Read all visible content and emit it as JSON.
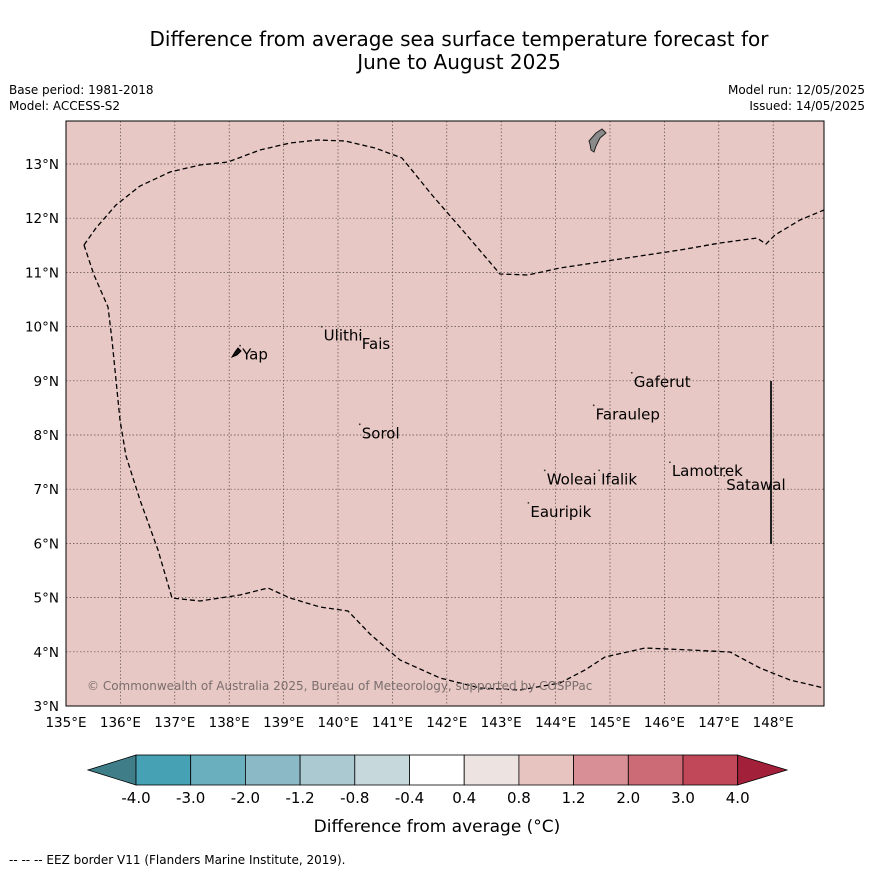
{
  "title_line1": "Difference from average sea surface temperature forecast for",
  "title_line2": "June to August 2025",
  "base_period": "Base period: 1981-2018",
  "model": "Model: ACCESS-S2",
  "model_run": "Model run: 12/05/2025",
  "issued": "Issued: 14/05/2025",
  "copyright": "© Commonwealth of Australia 2025, Bureau of Meteorology, supported by COSPPac",
  "footnote": "--  --  -- EEZ border V11 (Flanders Marine Institute, 2019).",
  "map": {
    "fill_color": "#e8c8c4",
    "lon_ticks": [
      "135°E",
      "136°E",
      "137°E",
      "138°E",
      "139°E",
      "140°E",
      "141°E",
      "142°E",
      "143°E",
      "144°E",
      "145°E",
      "146°E",
      "147°E",
      "148°E"
    ],
    "lat_ticks": [
      "3°N",
      "4°N",
      "5°N",
      "6°N",
      "7°N",
      "8°N",
      "9°N",
      "10°N",
      "11°N",
      "12°N",
      "13°N"
    ],
    "places": [
      {
        "name": "Ulithi",
        "lon": 139.7,
        "lat": 9.85
      },
      {
        "name": "Fais",
        "lon": 140.4,
        "lat": 9.7
      },
      {
        "name": "Yap",
        "lon": 138.2,
        "lat": 9.5
      },
      {
        "name": "Gaferut",
        "lon": 145.4,
        "lat": 9.0
      },
      {
        "name": "Faraulep",
        "lon": 144.7,
        "lat": 8.4
      },
      {
        "name": "Sorol",
        "lon": 140.4,
        "lat": 8.05
      },
      {
        "name": "Lamotrek",
        "lon": 146.1,
        "lat": 7.35
      },
      {
        "name": "Woleai",
        "lon": 143.8,
        "lat": 7.2
      },
      {
        "name": "Ifalik",
        "lon": 144.8,
        "lat": 7.2
      },
      {
        "name": "Satawal",
        "lon": 147.1,
        "lat": 7.1
      },
      {
        "name": "Eauripik",
        "lon": 143.5,
        "lat": 6.6
      }
    ]
  },
  "colorbar": {
    "label": "Difference from average (°C)",
    "tick_labels": [
      "-4.0",
      "-3.0",
      "-2.0",
      "-1.2",
      "-0.8",
      "-0.4",
      "0.4",
      "0.8",
      "1.2",
      "2.0",
      "3.0",
      "4.0"
    ],
    "colors": [
      "#3f7e89",
      "#47a1b5",
      "#6aafbd",
      "#8bbac6",
      "#aac9d0",
      "#c7d8dc",
      "#ffffff",
      "#ede4e2",
      "#e8c4c0",
      "#d89096",
      "#cc6a76",
      "#c04858",
      "#a3203a"
    ]
  }
}
